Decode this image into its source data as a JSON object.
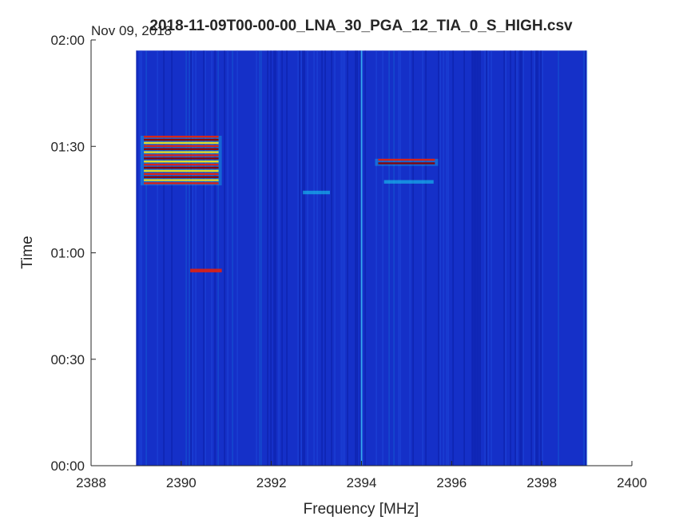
{
  "chart_data": {
    "type": "heatmap",
    "title": "2018-11-09T00-00-00_LNA_30_PGA_12_TIA_0_S_HIGH.csv",
    "date_label": "Nov 09, 2018",
    "xlabel": "Frequency [MHz]",
    "ylabel": "Time",
    "xlim": [
      2388,
      2400
    ],
    "ylim_minutes": [
      0,
      120
    ],
    "x_ticks": [
      "2388",
      "2390",
      "2392",
      "2394",
      "2396",
      "2398",
      "2400"
    ],
    "y_ticks": [
      "00:00",
      "00:30",
      "01:00",
      "01:30",
      "02:00"
    ],
    "data_extent": {
      "freq_mhz": [
        2389,
        2399
      ],
      "time_minutes": [
        0,
        117
      ]
    },
    "background_color": "#1530c8",
    "colormap": [
      "#0a1a9a",
      "#1f4fe0",
      "#18c8f0",
      "#f0e020",
      "#e02010",
      "#8a0000"
    ],
    "hot_signals": [
      {
        "freq_start": 2389.1,
        "freq_end": 2390.9,
        "time_start": 79,
        "time_end": 93,
        "intensity": "high"
      },
      {
        "freq_start": 2392.7,
        "freq_end": 2393.3,
        "time_start": 76.5,
        "time_end": 77.5,
        "intensity": "low"
      },
      {
        "freq_start": 2394.3,
        "freq_end": 2395.7,
        "time_start": 84.5,
        "time_end": 86.5,
        "intensity": "high"
      },
      {
        "freq_start": 2394.5,
        "freq_end": 2395.6,
        "time_start": 79.5,
        "time_end": 80.5,
        "intensity": "low"
      },
      {
        "freq_start": 2390.2,
        "freq_end": 2390.9,
        "time_start": 54.5,
        "time_end": 55.5,
        "intensity": "medium"
      }
    ],
    "vertical_lines": [
      {
        "freq": 2394.0,
        "color": "#40d0ff"
      }
    ],
    "grid": false
  }
}
